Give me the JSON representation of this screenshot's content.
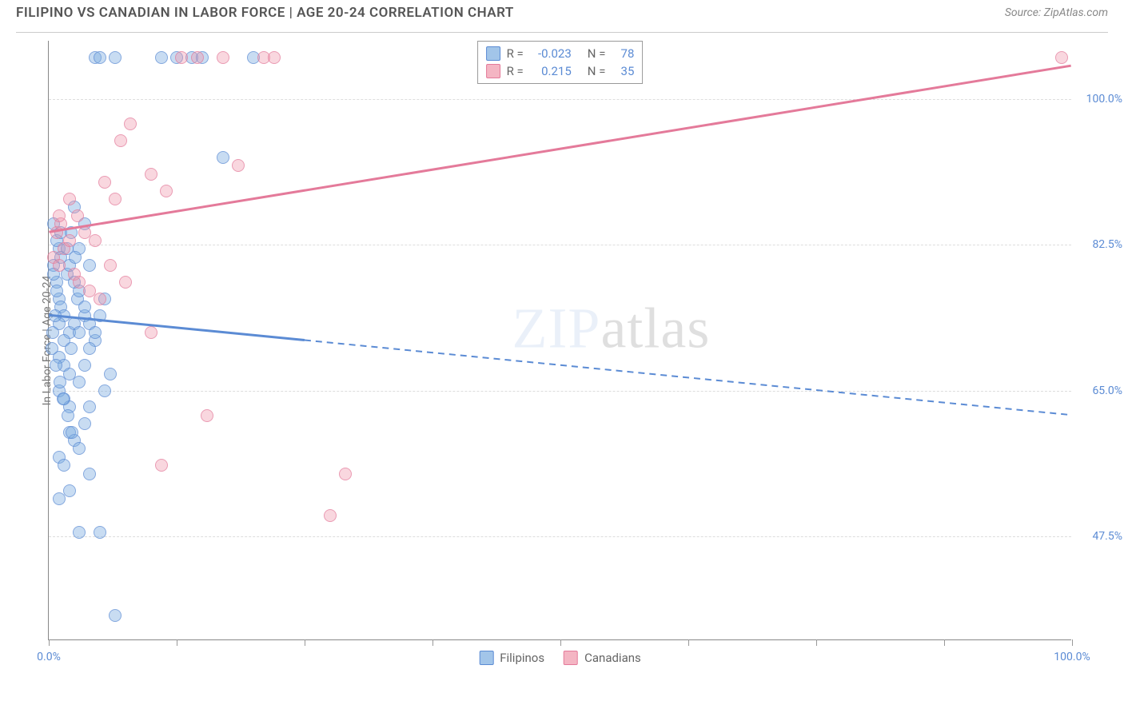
{
  "title": "FILIPINO VS CANADIAN IN LABOR FORCE | AGE 20-24 CORRELATION CHART",
  "source": "Source: ZipAtlas.com",
  "y_axis_label": "In Labor Force | Age 20-24",
  "watermark": {
    "part1": "ZIP",
    "part2": "atlas"
  },
  "chart": {
    "type": "scatter",
    "xlim": [
      0,
      100
    ],
    "ylim": [
      35,
      107
    ],
    "background_color": "#ffffff",
    "grid_color": "#dddddd",
    "y_gridlines": [
      47.5,
      65.0,
      82.5,
      100.0
    ],
    "y_tick_labels": [
      "47.5%",
      "65.0%",
      "82.5%",
      "100.0%"
    ],
    "x_ticks": [
      0,
      12.5,
      25,
      37.5,
      50,
      62.5,
      75,
      87.5,
      100
    ],
    "x_tick_labels": {
      "0": "0.0%",
      "100": "100.0%"
    },
    "point_radius": 8,
    "series": [
      {
        "name": "Filipinos",
        "color_fill": "#7aace0",
        "color_stroke": "#5b8bd4",
        "R": "-0.023",
        "N": "78",
        "trend": {
          "y_at_x0": 74,
          "y_at_x100": 62,
          "solid_until_x": 25
        },
        "points": [
          [
            0.5,
            80
          ],
          [
            0.8,
            78
          ],
          [
            1.0,
            76
          ],
          [
            1.2,
            75
          ],
          [
            1.5,
            74
          ],
          [
            1.0,
            73
          ],
          [
            2.0,
            72
          ],
          [
            1.5,
            71
          ],
          [
            2.2,
            70
          ],
          [
            0.8,
            77
          ],
          [
            1.8,
            79
          ],
          [
            2.5,
            73
          ],
          [
            3.0,
            72
          ],
          [
            2.8,
            76
          ],
          [
            3.5,
            74
          ],
          [
            1.0,
            69
          ],
          [
            1.5,
            68
          ],
          [
            2.0,
            67
          ],
          [
            0.5,
            85
          ],
          [
            1.0,
            82
          ],
          [
            1.2,
            81
          ],
          [
            2.0,
            80
          ],
          [
            2.5,
            78
          ],
          [
            3.0,
            77
          ],
          [
            3.5,
            75
          ],
          [
            4.0,
            73
          ],
          [
            4.5,
            71
          ],
          [
            1.0,
            65
          ],
          [
            1.5,
            64
          ],
          [
            2.0,
            63
          ],
          [
            3.0,
            66
          ],
          [
            3.5,
            68
          ],
          [
            4.0,
            70
          ],
          [
            4.5,
            72
          ],
          [
            5.0,
            74
          ],
          [
            5.5,
            76
          ],
          [
            2.0,
            60
          ],
          [
            2.5,
            59
          ],
          [
            3.0,
            58
          ],
          [
            3.5,
            61
          ],
          [
            4.0,
            63
          ],
          [
            1.0,
            57
          ],
          [
            1.5,
            56
          ],
          [
            4.5,
            105
          ],
          [
            5.0,
            105
          ],
          [
            6.5,
            105
          ],
          [
            11.0,
            105
          ],
          [
            12.5,
            105
          ],
          [
            14.0,
            105
          ],
          [
            15.0,
            105
          ],
          [
            20.0,
            105
          ],
          [
            17.0,
            93
          ],
          [
            2.5,
            87
          ],
          [
            3.5,
            85
          ],
          [
            4.0,
            80
          ],
          [
            3.0,
            48
          ],
          [
            5.0,
            48
          ],
          [
            1.0,
            52
          ],
          [
            2.0,
            53
          ],
          [
            4.0,
            55
          ],
          [
            6.5,
            38
          ],
          [
            3.0,
            82
          ],
          [
            0.8,
            83
          ],
          [
            1.2,
            84
          ],
          [
            0.5,
            79
          ],
          [
            1.8,
            82
          ],
          [
            2.2,
            84
          ],
          [
            2.6,
            81
          ],
          [
            0.6,
            74
          ],
          [
            0.4,
            72
          ],
          [
            0.3,
            70
          ],
          [
            0.7,
            68
          ],
          [
            1.1,
            66
          ],
          [
            1.4,
            64
          ],
          [
            1.9,
            62
          ],
          [
            2.3,
            60
          ],
          [
            5.5,
            65
          ],
          [
            6.0,
            67
          ]
        ]
      },
      {
        "name": "Canadians",
        "color_fill": "#f096aa",
        "color_stroke": "#e47a9a",
        "R": "0.215",
        "N": "35",
        "trend": {
          "y_at_x0": 84,
          "y_at_x100": 104,
          "solid_until_x": 100
        },
        "points": [
          [
            0.5,
            81
          ],
          [
            1.0,
            80
          ],
          [
            1.5,
            82
          ],
          [
            2.0,
            83
          ],
          [
            2.5,
            79
          ],
          [
            3.0,
            78
          ],
          [
            0.8,
            84
          ],
          [
            1.2,
            85
          ],
          [
            5.5,
            90
          ],
          [
            6.5,
            88
          ],
          [
            10.0,
            91
          ],
          [
            11.5,
            89
          ],
          [
            8.0,
            97
          ],
          [
            7.0,
            95
          ],
          [
            13.0,
            105
          ],
          [
            14.5,
            105
          ],
          [
            17.0,
            105
          ],
          [
            21.0,
            105
          ],
          [
            22.0,
            105
          ],
          [
            99.0,
            105
          ],
          [
            18.5,
            92
          ],
          [
            4.0,
            77
          ],
          [
            5.0,
            76
          ],
          [
            6.0,
            80
          ],
          [
            7.5,
            78
          ],
          [
            10.0,
            72
          ],
          [
            15.5,
            62
          ],
          [
            11.0,
            56
          ],
          [
            29.0,
            55
          ],
          [
            27.5,
            50
          ],
          [
            3.5,
            84
          ],
          [
            4.5,
            83
          ],
          [
            2.8,
            86
          ],
          [
            2.0,
            88
          ],
          [
            1.0,
            86
          ]
        ]
      }
    ]
  },
  "legend_top": {
    "r_label": "R =",
    "n_label": "N ="
  },
  "legend_bottom": {
    "series1": "Filipinos",
    "series2": "Canadians"
  }
}
